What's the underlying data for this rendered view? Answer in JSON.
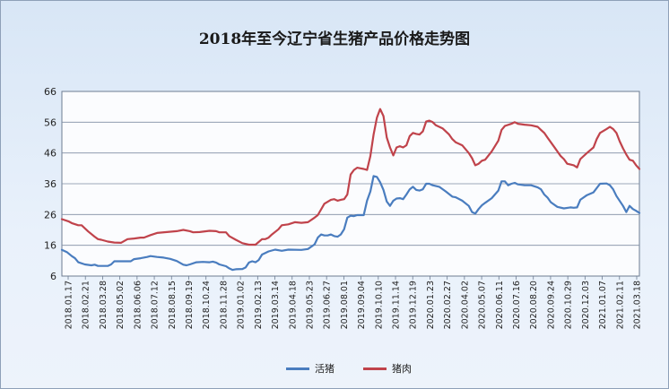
{
  "chart_data": {
    "type": "line",
    "title": "2018年至今辽宁省生猪产品价格走势图",
    "xlabel": "",
    "ylabel": "",
    "ylim": [
      6,
      66
    ],
    "yticks": [
      6,
      16,
      26,
      36,
      46,
      56,
      66
    ],
    "grid": true,
    "legend": "bottom",
    "x_tick_labels": [
      "2018.01.17",
      "2018.02.21",
      "2018.03.28",
      "2018.05.02",
      "2018.06.06",
      "2018.07.12",
      "2018.08.15",
      "2018.09.19",
      "2018.10.24",
      "2018.11.28",
      "2019.01.02",
      "2019.02.13",
      "2019.03.14",
      "2019.04.18",
      "2019.05.23",
      "2019.06.27",
      "2019.08.01",
      "2019.09.04",
      "2019.10.10",
      "2019.11.14",
      "2019.12.19",
      "2020.01.23",
      "2020.02.27",
      "2020.04.02",
      "2020.05.07",
      "2020.06.11",
      "2020.07.16",
      "2020.08.20",
      "2020.09.24",
      "2020.10.29",
      "2020.12.03",
      "2021.01.07",
      "2021.02.11",
      "2021.03.18"
    ],
    "series": [
      {
        "name": "活猪",
        "color": "#4a7dbf",
        "points": [
          [
            0,
            14.5
          ],
          [
            1.5,
            13.8
          ],
          [
            3,
            12.5
          ],
          [
            4,
            11.8
          ],
          [
            5,
            10.5
          ],
          [
            7,
            9.8
          ],
          [
            9,
            9.5
          ],
          [
            10,
            9.7
          ],
          [
            11,
            9.3
          ],
          [
            14,
            9.3
          ],
          [
            15,
            9.8
          ],
          [
            16,
            10.8
          ],
          [
            19,
            10.8
          ],
          [
            21,
            10.8
          ],
          [
            22,
            11.5
          ],
          [
            24,
            11.8
          ],
          [
            26,
            12.2
          ],
          [
            27,
            12.5
          ],
          [
            29,
            12.2
          ],
          [
            31,
            12
          ],
          [
            33,
            11.6
          ],
          [
            35,
            10.9
          ],
          [
            37,
            9.7
          ],
          [
            38,
            9.5
          ],
          [
            39,
            9.8
          ],
          [
            41,
            10.5
          ],
          [
            43,
            10.6
          ],
          [
            45,
            10.5
          ],
          [
            46,
            10.7
          ],
          [
            47,
            10.4
          ],
          [
            48,
            9.8
          ],
          [
            50,
            9.2
          ],
          [
            51,
            8.5
          ],
          [
            52,
            8
          ],
          [
            53,
            8.2
          ],
          [
            55,
            8.3
          ],
          [
            56,
            8.8
          ],
          [
            57,
            10.4
          ],
          [
            58,
            10.8
          ],
          [
            59,
            10.5
          ],
          [
            60,
            11.2
          ],
          [
            61,
            13
          ],
          [
            63,
            14
          ],
          [
            65,
            14.6
          ],
          [
            67,
            14.2
          ],
          [
            69,
            14.6
          ],
          [
            73,
            14.5
          ],
          [
            75,
            14.8
          ],
          [
            77,
            16.3
          ],
          [
            78,
            18.5
          ],
          [
            79,
            19.5
          ],
          [
            80,
            19.2
          ],
          [
            81,
            19.2
          ],
          [
            82,
            19.5
          ],
          [
            83,
            19
          ],
          [
            84,
            18.8
          ],
          [
            85,
            19.5
          ],
          [
            86,
            21.2
          ],
          [
            87,
            25
          ],
          [
            88,
            25.6
          ],
          [
            89,
            25.5
          ],
          [
            90,
            25.8
          ],
          [
            92,
            25.8
          ],
          [
            93,
            30.5
          ],
          [
            94,
            33.5
          ],
          [
            95,
            38.5
          ],
          [
            96,
            38.2
          ],
          [
            97,
            36.5
          ],
          [
            98,
            34
          ],
          [
            99,
            30.2
          ],
          [
            100,
            28.8
          ],
          [
            101,
            30.5
          ],
          [
            102,
            31.2
          ],
          [
            103,
            31.3
          ],
          [
            104,
            31
          ],
          [
            105,
            32.5
          ],
          [
            106,
            34.2
          ],
          [
            107,
            35
          ],
          [
            108,
            34
          ],
          [
            109,
            33.8
          ],
          [
            110,
            34.2
          ],
          [
            111,
            36
          ],
          [
            112,
            36
          ],
          [
            113,
            35.5
          ],
          [
            115,
            35
          ],
          [
            117,
            33.5
          ],
          [
            119,
            31.8
          ],
          [
            120,
            31.6
          ],
          [
            122,
            30.5
          ],
          [
            124,
            28.8
          ],
          [
            125,
            26.8
          ],
          [
            126,
            26.3
          ],
          [
            127,
            27.8
          ],
          [
            128,
            29
          ],
          [
            129,
            29.8
          ],
          [
            131,
            31.3
          ],
          [
            133,
            33.8
          ],
          [
            134,
            36.8
          ],
          [
            135,
            36.8
          ],
          [
            136,
            35.5
          ],
          [
            137,
            36
          ],
          [
            138,
            36.3
          ],
          [
            139,
            35.8
          ],
          [
            141,
            35.5
          ],
          [
            143,
            35.5
          ],
          [
            145,
            34.8
          ],
          [
            146,
            34.2
          ],
          [
            147,
            32.5
          ],
          [
            148,
            31.5
          ],
          [
            149,
            30
          ],
          [
            151,
            28.5
          ],
          [
            153,
            28
          ],
          [
            155,
            28.3
          ],
          [
            156,
            28.2
          ],
          [
            157,
            28.3
          ],
          [
            158,
            30.8
          ],
          [
            160,
            32.3
          ],
          [
            162,
            33.2
          ],
          [
            164,
            36
          ],
          [
            166,
            36.1
          ],
          [
            167,
            35.5
          ],
          [
            168,
            34.2
          ],
          [
            169,
            32
          ],
          [
            171,
            28.8
          ],
          [
            172,
            26.8
          ],
          [
            173,
            28.8
          ],
          [
            174,
            27.8
          ],
          [
            175,
            27.2
          ],
          [
            176,
            26.5
          ]
        ]
      },
      {
        "name": "猪肉",
        "color": "#c0434b",
        "points": [
          [
            0,
            24.5
          ],
          [
            2,
            23.8
          ],
          [
            3,
            23.2
          ],
          [
            5,
            22.5
          ],
          [
            6,
            22.5
          ],
          [
            8,
            20.5
          ],
          [
            10,
            18.8
          ],
          [
            11,
            18
          ],
          [
            12,
            17.8
          ],
          [
            14,
            17.2
          ],
          [
            16,
            16.9
          ],
          [
            18,
            16.8
          ],
          [
            20,
            18
          ],
          [
            22,
            18.2
          ],
          [
            24,
            18.5
          ],
          [
            25,
            18.5
          ],
          [
            27,
            19.3
          ],
          [
            29,
            20
          ],
          [
            32,
            20.3
          ],
          [
            35,
            20.6
          ],
          [
            37,
            21
          ],
          [
            39,
            20.6
          ],
          [
            40,
            20.2
          ],
          [
            42,
            20.3
          ],
          [
            45,
            20.7
          ],
          [
            47,
            20.6
          ],
          [
            48,
            20.2
          ],
          [
            50,
            20.2
          ],
          [
            51,
            19
          ],
          [
            53,
            17.8
          ],
          [
            55,
            16.7
          ],
          [
            57,
            16.2
          ],
          [
            59,
            16.2
          ],
          [
            61,
            18
          ],
          [
            62,
            18
          ],
          [
            63,
            18.5
          ],
          [
            64,
            19.5
          ],
          [
            66,
            21.2
          ],
          [
            67,
            22.5
          ],
          [
            69,
            22.8
          ],
          [
            71,
            23.5
          ],
          [
            73,
            23.3
          ],
          [
            75,
            23.5
          ],
          [
            77,
            25
          ],
          [
            78,
            25.8
          ],
          [
            80,
            29.5
          ],
          [
            82,
            30.8
          ],
          [
            83,
            31
          ],
          [
            84,
            30.5
          ],
          [
            85,
            30.8
          ],
          [
            86,
            31
          ],
          [
            87,
            32.5
          ],
          [
            88,
            39
          ],
          [
            89,
            40.5
          ],
          [
            90,
            41.2
          ],
          [
            91,
            41
          ],
          [
            92,
            40.8
          ],
          [
            93,
            40.5
          ],
          [
            94,
            45
          ],
          [
            95,
            52
          ],
          [
            96,
            57.5
          ],
          [
            97,
            60.3
          ],
          [
            98,
            58
          ],
          [
            99,
            51
          ],
          [
            100,
            47.8
          ],
          [
            101,
            45.2
          ],
          [
            102,
            47.8
          ],
          [
            103,
            48.2
          ],
          [
            104,
            47.8
          ],
          [
            105,
            48.5
          ],
          [
            106,
            51.5
          ],
          [
            107,
            52.5
          ],
          [
            108,
            52.2
          ],
          [
            109,
            52
          ],
          [
            110,
            53
          ],
          [
            111,
            56.2
          ],
          [
            112,
            56.5
          ],
          [
            113,
            56
          ],
          [
            114,
            55
          ],
          [
            116,
            54
          ],
          [
            118,
            52
          ],
          [
            119,
            50.5
          ],
          [
            120,
            49.5
          ],
          [
            122,
            48.5
          ],
          [
            124,
            46
          ],
          [
            125,
            44.3
          ],
          [
            126,
            42
          ],
          [
            127,
            42.5
          ],
          [
            128,
            43.5
          ],
          [
            129,
            43.8
          ],
          [
            131,
            46.5
          ],
          [
            133,
            50
          ],
          [
            134,
            53.5
          ],
          [
            135,
            54.8
          ],
          [
            137,
            55.5
          ],
          [
            138,
            56
          ],
          [
            139,
            55.5
          ],
          [
            141,
            55.2
          ],
          [
            143,
            55
          ],
          [
            145,
            54.5
          ],
          [
            146,
            53.5
          ],
          [
            147,
            52.5
          ],
          [
            148,
            51
          ],
          [
            150,
            48
          ],
          [
            152,
            45
          ],
          [
            153,
            44
          ],
          [
            154,
            42.5
          ],
          [
            156,
            42
          ],
          [
            157,
            41.3
          ],
          [
            158,
            44
          ],
          [
            160,
            46
          ],
          [
            162,
            47.8
          ],
          [
            163,
            50.5
          ],
          [
            164,
            52.5
          ],
          [
            166,
            53.8
          ],
          [
            167,
            54.5
          ],
          [
            168,
            53.8
          ],
          [
            169,
            52.5
          ],
          [
            170,
            49.8
          ],
          [
            171,
            47.5
          ],
          [
            172,
            45.5
          ],
          [
            173,
            43.8
          ],
          [
            174,
            43.5
          ],
          [
            175,
            42
          ],
          [
            176,
            40.8
          ]
        ]
      }
    ]
  }
}
